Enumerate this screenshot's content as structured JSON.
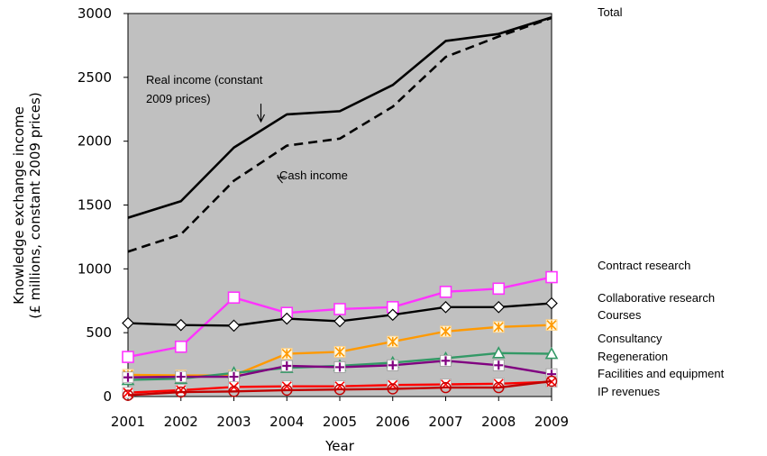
{
  "chart_data": {
    "type": "line",
    "title": "",
    "xlabel": "Year",
    "ylabel": [
      "Knowledge exchange income",
      "(£ millions, constant 2009 prices)"
    ],
    "x": [
      "2001",
      "2002",
      "2003",
      "2004",
      "2005",
      "2006",
      "2007",
      "2008",
      "2009"
    ],
    "ylim": [
      0,
      3000
    ],
    "yticks": [
      "0",
      "500",
      "1000",
      "1500",
      "2000",
      "2500",
      "3000"
    ],
    "background": "#c0c0c0",
    "series": [
      {
        "name": "Total",
        "label": "Total",
        "color": "#000000",
        "marker": "none",
        "dash": false,
        "values": [
          1400,
          1530,
          1950,
          2210,
          2235,
          2440,
          2785,
          2840,
          2970
        ]
      },
      {
        "name": "",
        "label": "",
        "color": "#000000",
        "marker": "none",
        "dash": true,
        "values": [
          1135,
          1270,
          1690,
          1965,
          2020,
          2270,
          2660,
          2820,
          2965
        ]
      },
      {
        "name": "Contract research",
        "label": "Contract research",
        "color": "#ff33ff",
        "marker": "square",
        "values": [
          310,
          390,
          775,
          655,
          685,
          700,
          820,
          845,
          935
        ]
      },
      {
        "name": "Collaborative research",
        "label": "Collaborative research",
        "color": "#000000",
        "marker": "diamond",
        "values": [
          575,
          560,
          555,
          610,
          590,
          640,
          700,
          700,
          730
        ]
      },
      {
        "name": "Courses",
        "label": "Courses",
        "color": "#ff9900",
        "marker": "asterisk",
        "values": [
          170,
          165,
          165,
          335,
          350,
          430,
          510,
          545,
          560
        ]
      },
      {
        "name": "Consultancy",
        "label": "Consultancy",
        "color": "#339966",
        "marker": "triangle",
        "values": [
          130,
          140,
          185,
          225,
          240,
          265,
          300,
          340,
          335
        ]
      },
      {
        "name": "Regeneration",
        "label": "Regeneration",
        "color": "#800080",
        "marker": "plus",
        "values": [
          150,
          155,
          155,
          240,
          230,
          245,
          280,
          245,
          175
        ]
      },
      {
        "name": "Facilities and equipment",
        "label": "Facilities and equipment",
        "color": "#ff0000",
        "marker": "x",
        "values": [
          30,
          50,
          75,
          80,
          80,
          90,
          95,
          100,
          115
        ]
      },
      {
        "name": "IP revenues",
        "label": "IP revenues",
        "color": "#c00000",
        "marker": "circle",
        "values": [
          10,
          35,
          40,
          50,
          55,
          60,
          70,
          70,
          120
        ]
      }
    ],
    "annotations": [
      {
        "text_lines": [
          "Real income (constant",
          "2009 prices)"
        ],
        "target": {
          "x": "2003",
          "y": 2005
        }
      },
      {
        "text_lines": [
          "Cash income"
        ],
        "target": {
          "x": "2003",
          "y": 1750
        }
      }
    ]
  },
  "side_labels": {
    "total": "Total",
    "contract": "Contract research",
    "collaborative": "Collaborative research",
    "courses": "Courses",
    "consultancy": "Consultancy",
    "regeneration": "Regeneration",
    "facilities": "Facilities and equipment",
    "ip": "IP revenues"
  }
}
